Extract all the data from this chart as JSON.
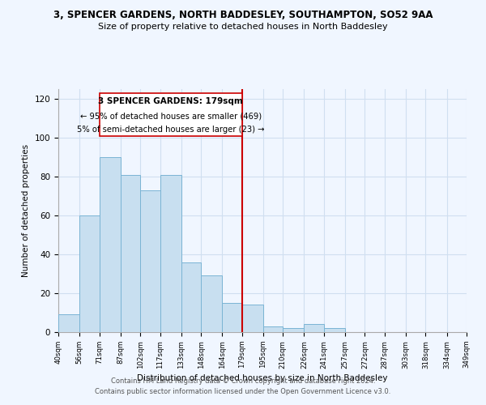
{
  "title": "3, SPENCER GARDENS, NORTH BADDESLEY, SOUTHAMPTON, SO52 9AA",
  "subtitle": "Size of property relative to detached houses in North Baddesley",
  "xlabel": "Distribution of detached houses by size in North Baddesley",
  "ylabel": "Number of detached properties",
  "bin_edges": [
    40,
    56,
    71,
    87,
    102,
    117,
    133,
    148,
    164,
    179,
    195,
    210,
    226,
    241,
    257,
    272,
    287,
    303,
    318,
    334,
    349
  ],
  "counts": [
    9,
    60,
    90,
    81,
    73,
    81,
    36,
    29,
    15,
    14,
    3,
    2,
    4,
    2,
    0,
    0,
    0,
    0,
    0,
    0
  ],
  "bar_color": "#c8dff0",
  "bar_edgecolor": "#7ab4d4",
  "vline_x": 179,
  "vline_color": "#cc0000",
  "annotation_title": "3 SPENCER GARDENS: 179sqm",
  "annotation_line1": "← 95% of detached houses are smaller (469)",
  "annotation_line2": "5% of semi-detached houses are larger (23) →",
  "annotation_box_edgecolor": "#cc0000",
  "tick_labels": [
    "40sqm",
    "56sqm",
    "71sqm",
    "87sqm",
    "102sqm",
    "117sqm",
    "133sqm",
    "148sqm",
    "164sqm",
    "179sqm",
    "195sqm",
    "210sqm",
    "226sqm",
    "241sqm",
    "257sqm",
    "272sqm",
    "287sqm",
    "303sqm",
    "318sqm",
    "334sqm",
    "349sqm"
  ],
  "ylim": [
    0,
    125
  ],
  "yticks": [
    0,
    20,
    40,
    60,
    80,
    100,
    120
  ],
  "footer_line1": "Contains HM Land Registry data © Crown copyright and database right 2024.",
  "footer_line2": "Contains public sector information licensed under the Open Government Licence v3.0.",
  "bg_color": "#f0f6ff",
  "grid_color": "#d0dff0"
}
